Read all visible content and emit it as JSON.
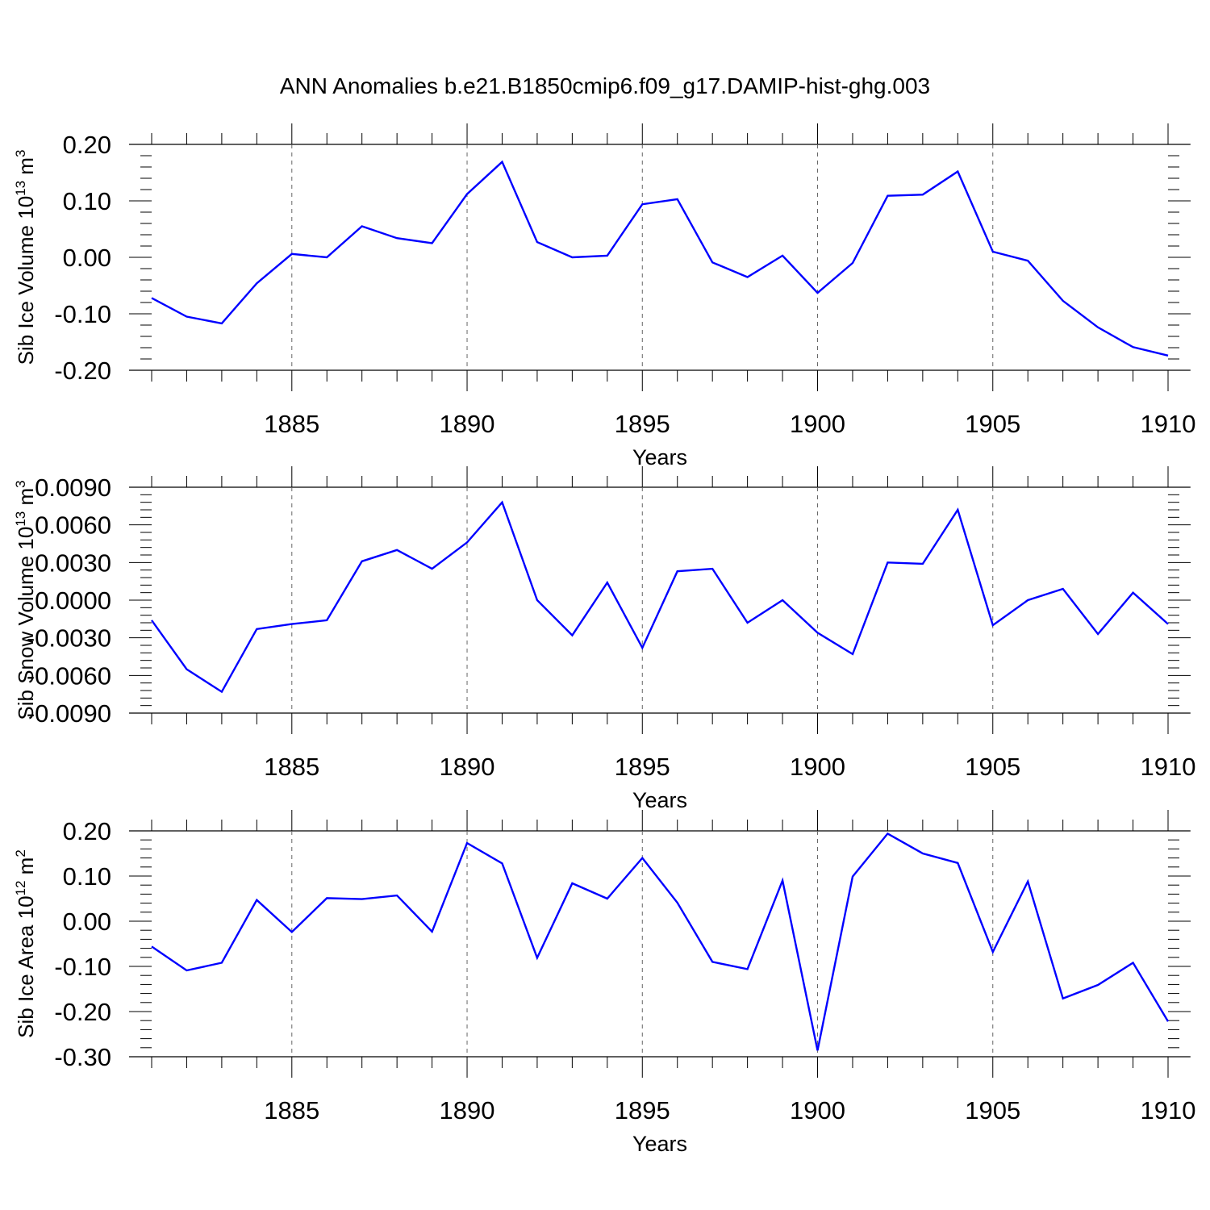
{
  "title": "ANN Anomalies b.e21.B1850cmip6.f09_g17.DAMIP-hist-ghg.003",
  "colors": {
    "line": "#0000ff",
    "axis": "#000000",
    "grid": "#666666"
  },
  "chart_data": [
    {
      "type": "line",
      "ylabel": "Sib Ice Volume 10",
      "ylabel_exp": "13",
      "ylabel_unit": " m",
      "ylabel_unit_exp": "3",
      "xlabel": "Years",
      "xlim": [
        1881,
        1910
      ],
      "ylim": [
        -0.2,
        0.2
      ],
      "yticks": [
        -0.2,
        -0.1,
        0.0,
        0.1,
        0.2
      ],
      "ytick_labels": [
        "-0.20",
        "-0.10",
        "0.00",
        "0.10",
        "0.20"
      ],
      "xticks": [
        1885,
        1890,
        1895,
        1900,
        1905,
        1910
      ],
      "xtick_labels": [
        "1885",
        "1890",
        "1895",
        "1900",
        "1905",
        "1910"
      ],
      "grid": "dashed vertical at major x ticks",
      "x": [
        1881,
        1882,
        1883,
        1884,
        1885,
        1886,
        1887,
        1888,
        1889,
        1890,
        1891,
        1892,
        1893,
        1894,
        1895,
        1896,
        1897,
        1898,
        1899,
        1900,
        1901,
        1902,
        1903,
        1904,
        1905,
        1906,
        1907,
        1908,
        1909,
        1910
      ],
      "values": [
        -0.072,
        -0.105,
        -0.117,
        -0.046,
        0.006,
        0.0,
        0.055,
        0.034,
        0.025,
        0.112,
        0.169,
        0.027,
        0.0,
        0.003,
        0.094,
        0.103,
        -0.009,
        -0.035,
        0.003,
        -0.063,
        -0.01,
        0.109,
        0.111,
        0.152,
        0.01,
        -0.006,
        -0.077,
        -0.124,
        -0.159,
        -0.174
      ]
    },
    {
      "type": "line",
      "ylabel": "Sib Snow Volume 10",
      "ylabel_exp": "13",
      "ylabel_unit": " m",
      "ylabel_unit_exp": "3",
      "xlabel": "Years",
      "xlim": [
        1881,
        1910
      ],
      "ylim": [
        -0.009,
        0.009
      ],
      "yticks": [
        -0.009,
        -0.006,
        -0.003,
        0.0,
        0.003,
        0.006,
        0.009
      ],
      "ytick_labels": [
        "-0.0090",
        "-0.0060",
        "-0.0030",
        "0.0000",
        "0.0030",
        "0.0060",
        "0.0090"
      ],
      "xticks": [
        1885,
        1890,
        1895,
        1900,
        1905,
        1910
      ],
      "xtick_labels": [
        "1885",
        "1890",
        "1895",
        "1900",
        "1905",
        "1910"
      ],
      "grid": "dashed vertical at major x ticks",
      "x": [
        1881,
        1882,
        1883,
        1884,
        1885,
        1886,
        1887,
        1888,
        1889,
        1890,
        1891,
        1892,
        1893,
        1894,
        1895,
        1896,
        1897,
        1898,
        1899,
        1900,
        1901,
        1902,
        1903,
        1904,
        1905,
        1906,
        1907,
        1908,
        1909,
        1910
      ],
      "values": [
        -0.0016,
        -0.0055,
        -0.0073,
        -0.0023,
        -0.0019,
        -0.0016,
        0.0031,
        0.004,
        0.0025,
        0.0046,
        0.0078,
        0.0,
        -0.0028,
        0.0014,
        -0.0038,
        0.0023,
        0.0025,
        -0.0018,
        0.0,
        -0.0026,
        -0.0043,
        0.003,
        0.0029,
        0.0072,
        -0.002,
        0.0,
        0.0009,
        -0.0027,
        0.0006,
        -0.0019
      ]
    },
    {
      "type": "line",
      "ylabel": "Sib Ice Area 10",
      "ylabel_exp": "12",
      "ylabel_unit": " m",
      "ylabel_unit_exp": "2",
      "xlabel": "Years",
      "xlim": [
        1881,
        1910
      ],
      "ylim": [
        -0.3,
        0.2
      ],
      "yticks": [
        -0.3,
        -0.2,
        -0.1,
        0.0,
        0.1,
        0.2
      ],
      "ytick_labels": [
        "-0.30",
        "-0.20",
        "-0.10",
        "0.00",
        "0.10",
        "0.20"
      ],
      "xticks": [
        1885,
        1890,
        1895,
        1900,
        1905,
        1910
      ],
      "xtick_labels": [
        "1885",
        "1890",
        "1895",
        "1900",
        "1905",
        "1910"
      ],
      "grid": "dashed vertical at major x ticks",
      "x": [
        1881,
        1882,
        1883,
        1884,
        1885,
        1886,
        1887,
        1888,
        1889,
        1890,
        1891,
        1892,
        1893,
        1894,
        1895,
        1896,
        1897,
        1898,
        1899,
        1900,
        1901,
        1902,
        1903,
        1904,
        1905,
        1906,
        1907,
        1908,
        1909,
        1910
      ],
      "values": [
        -0.056,
        -0.109,
        -0.092,
        0.047,
        -0.024,
        0.051,
        0.049,
        0.057,
        -0.023,
        0.173,
        0.128,
        -0.081,
        0.084,
        0.05,
        0.14,
        0.041,
        -0.09,
        -0.106,
        0.09,
        -0.286,
        0.099,
        0.194,
        0.15,
        0.129,
        -0.068,
        0.088,
        -0.171,
        -0.141,
        -0.092,
        -0.222
      ]
    }
  ]
}
